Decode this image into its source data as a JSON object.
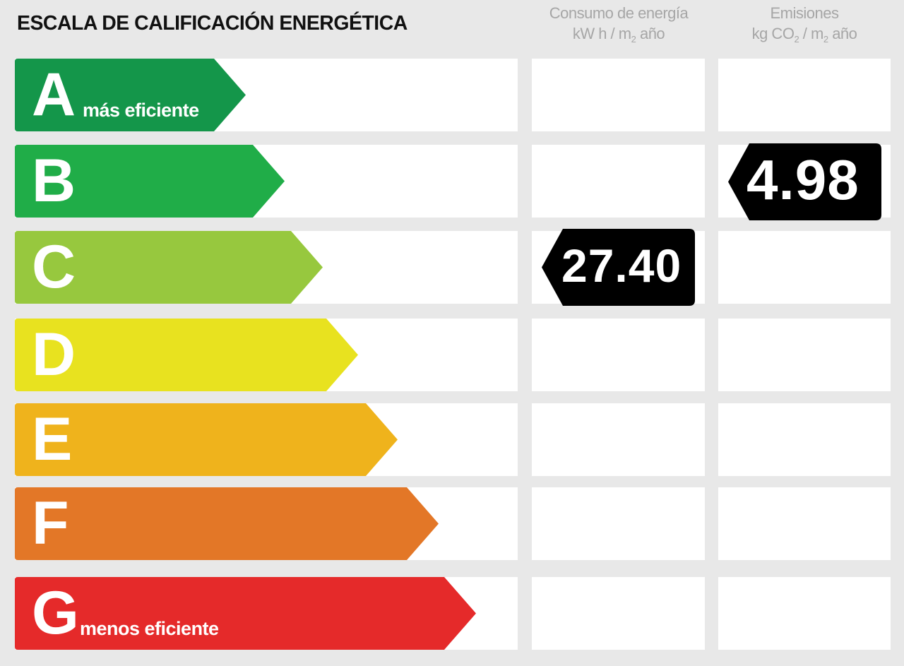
{
  "title": "ESCALA DE CALIFICACIÓN ENERGÉTICA",
  "columns": {
    "consumo": {
      "line1": "Consumo de energía",
      "line2_pre": "kW h / m",
      "line2_sub": "2",
      "line2_post": " año"
    },
    "emisiones": {
      "line1": "Emisiones",
      "line2_pre": "kg CO",
      "line2_sub": "2",
      "line2_mid": " / m",
      "line2_sub2": "2",
      "line2_post": " año"
    }
  },
  "ratings": [
    {
      "letter": "A",
      "label": "más eficiente",
      "color": "#14964a"
    },
    {
      "letter": "B",
      "label": "",
      "color": "#20ad48"
    },
    {
      "letter": "C",
      "label": "",
      "color": "#97c83e"
    },
    {
      "letter": "D",
      "label": "",
      "color": "#e8e21f"
    },
    {
      "letter": "E",
      "label": "",
      "color": "#efb31c"
    },
    {
      "letter": "F",
      "label": "",
      "color": "#e37727"
    },
    {
      "letter": "G",
      "label": "menos eficiente",
      "color": "#e52a2a"
    }
  ],
  "results": {
    "consumo": {
      "value": "27.40",
      "rating": "C",
      "color": "#000000"
    },
    "emisiones": {
      "value": "4.98",
      "rating": "B",
      "color": "#000000"
    }
  }
}
